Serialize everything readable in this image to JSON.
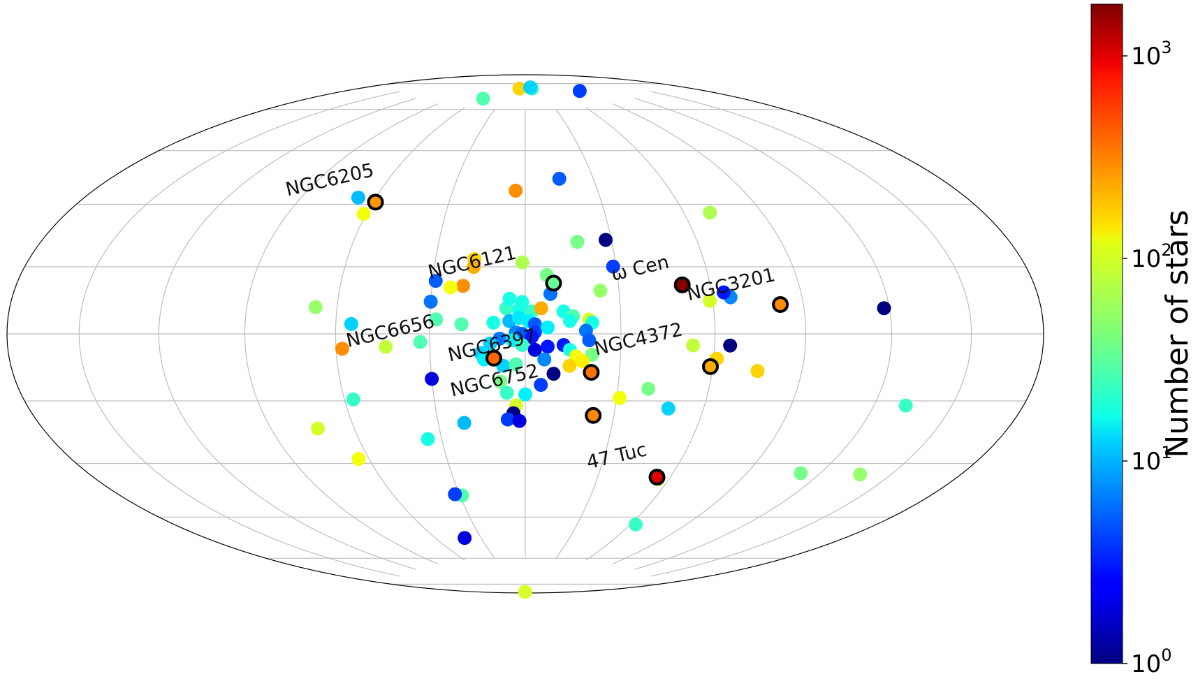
{
  "chart_data": {
    "type": "scatter",
    "projection": "hammer-aitoff (galactic coordinates, all-sky)",
    "grid": true,
    "colormap": "jet",
    "color_scale": "log",
    "colorbar": {
      "label": "Number of stars",
      "range": [
        1,
        1800
      ],
      "ticks": [
        {
          "value": 1,
          "base": "10",
          "exp": "0"
        },
        {
          "value": 10,
          "base": "10",
          "exp": "1"
        },
        {
          "value": 100,
          "base": "10",
          "exp": "2"
        },
        {
          "value": 1000,
          "base": "10",
          "exp": "3"
        }
      ]
    },
    "highlighted": [
      {
        "name": "NGC6205",
        "l": 59.0,
        "b": 40.9,
        "n": 230
      },
      {
        "name": "NGC6121",
        "l": -9.1,
        "b": 15.9,
        "n": 35
      },
      {
        "name": "ω Cen",
        "l": -50.8,
        "b": 15.0,
        "n": 1700
      },
      {
        "name": "NGC3201",
        "l": -82.2,
        "b": 8.6,
        "n": 250
      },
      {
        "name": "NGC6656",
        "l": 9.9,
        "b": -7.6,
        "n": 330
      },
      {
        "name": "NGC6397",
        "l": -21.0,
        "b": -12.0,
        "n": 300
      },
      {
        "name": "NGC4372",
        "l": -59.2,
        "b": -9.9,
        "n": 200
      },
      {
        "name": "NGC6752",
        "l": -23.0,
        "b": -25.6,
        "n": 260
      },
      {
        "name": "47 Tuc",
        "l": -54.5,
        "b": -44.9,
        "n": 900
      }
    ],
    "labels": [
      {
        "text": "NGC6205",
        "l": 82.0,
        "b": 45.0
      },
      {
        "text": "NGC6121",
        "l": 17.0,
        "b": 20.5
      },
      {
        "text": "ω Cen",
        "l": -38.0,
        "b": 18.5
      },
      {
        "text": "NGC3201",
        "l": -67.0,
        "b": 13.0
      },
      {
        "text": "NGC6656",
        "l": 42.0,
        "b": -1.0
      },
      {
        "text": "NGC6397",
        "l": 10.0,
        "b": -5.5
      },
      {
        "text": "NGC4372",
        "l": -36.0,
        "b": -3.5
      },
      {
        "text": "NGC6752",
        "l": 9.5,
        "b": -16.5
      },
      {
        "text": "47 Tuc",
        "l": -36.0,
        "b": -40.5
      }
    ],
    "points": [
      {
        "l": 13.0,
        "b": 84.0,
        "n": 150
      },
      {
        "l": -15.0,
        "b": 84.0,
        "n": 25
      },
      {
        "l": -90.0,
        "b": 81.0,
        "n": 4
      },
      {
        "l": 55.0,
        "b": 79.0,
        "n": 30
      },
      {
        "l": -12.0,
        "b": 84.5,
        "n": 12
      },
      {
        "l": -15.0,
        "b": 50.0,
        "n": 5
      },
      {
        "l": 4.0,
        "b": 46.0,
        "n": 250
      },
      {
        "l": 67.0,
        "b": 42.0,
        "n": 10
      },
      {
        "l": 61.0,
        "b": 37.0,
        "n": 100
      },
      {
        "l": -70.0,
        "b": 37.0,
        "n": 60
      },
      {
        "l": -18.0,
        "b": 29.0,
        "n": 40
      },
      {
        "l": -28.0,
        "b": 29.5,
        "n": 1
      },
      {
        "l": -29.0,
        "b": 21.0,
        "n": 4
      },
      {
        "l": 17.0,
        "b": 23.5,
        "n": 150
      },
      {
        "l": 17.0,
        "b": 21.0,
        "n": 200
      },
      {
        "l": 1.0,
        "b": 22.5,
        "n": 60
      },
      {
        "l": -7.0,
        "b": 18.5,
        "n": 40
      },
      {
        "l": 29.0,
        "b": 16.5,
        "n": 5
      },
      {
        "l": 20.0,
        "b": 15.0,
        "n": 250
      },
      {
        "l": 24.0,
        "b": 14.5,
        "n": 100
      },
      {
        "l": -24.0,
        "b": 13.5,
        "n": 50
      },
      {
        "l": 30.0,
        "b": 10.0,
        "n": 6
      },
      {
        "l": -8.0,
        "b": 12.5,
        "n": 6
      },
      {
        "l": -66.0,
        "b": 11.0,
        "n": 7
      },
      {
        "l": -59.0,
        "b": 10.0,
        "n": 80
      },
      {
        "l": -64.0,
        "b": 12.5,
        "n": 3
      },
      {
        "l": -118.0,
        "b": 7.0,
        "n": 1
      },
      {
        "l": 67.0,
        "b": 8.0,
        "n": 50
      },
      {
        "l": 55.0,
        "b": 3.0,
        "n": 12
      },
      {
        "l": 6.0,
        "b": 8.0,
        "n": 25
      },
      {
        "l": 2.0,
        "b": 7.5,
        "n": 20
      },
      {
        "l": -2.0,
        "b": 7.0,
        "n": 25
      },
      {
        "l": -5.0,
        "b": 8.0,
        "n": 200
      },
      {
        "l": 5.0,
        "b": 11.0,
        "n": 20
      },
      {
        "l": 1.0,
        "b": 10.0,
        "n": 20
      },
      {
        "l": -12.0,
        "b": 7.0,
        "n": 20
      },
      {
        "l": -15.0,
        "b": 5.5,
        "n": 30
      },
      {
        "l": -14.0,
        "b": 4.0,
        "n": 20
      },
      {
        "l": 28.0,
        "b": 4.5,
        "n": 30
      },
      {
        "l": 20.0,
        "b": 3.0,
        "n": 30
      },
      {
        "l": 10.0,
        "b": 3.5,
        "n": 20
      },
      {
        "l": 5.0,
        "b": 4.0,
        "n": 10
      },
      {
        "l": 2.0,
        "b": 5.0,
        "n": 14
      },
      {
        "l": -1.0,
        "b": 4.0,
        "n": 15
      },
      {
        "l": -3.0,
        "b": 3.0,
        "n": 5
      },
      {
        "l": -7.0,
        "b": 2.0,
        "n": 15
      },
      {
        "l": -20.0,
        "b": 4.5,
        "n": 80
      },
      {
        "l": -21.0,
        "b": 3.5,
        "n": 20
      },
      {
        "l": -19.0,
        "b": 1.0,
        "n": 6
      },
      {
        "l": 3.0,
        "b": 0.5,
        "n": 7
      },
      {
        "l": 1.0,
        "b": 0.0,
        "n": 5
      },
      {
        "l": -3.0,
        "b": 0.5,
        "n": 4
      },
      {
        "l": -2.0,
        "b": -1.0,
        "n": 3
      },
      {
        "l": 8.0,
        "b": -1.5,
        "n": 6
      },
      {
        "l": 11.0,
        "b": -3.0,
        "n": 12
      },
      {
        "l": 4.0,
        "b": -2.0,
        "n": 15
      },
      {
        "l": 1.0,
        "b": -3.5,
        "n": 25
      },
      {
        "l": -3.0,
        "b": -5.0,
        "n": 2
      },
      {
        "l": -7.0,
        "b": -4.0,
        "n": 3
      },
      {
        "l": -12.0,
        "b": -3.5,
        "n": 3
      },
      {
        "l": -14.0,
        "b": -5.0,
        "n": 20
      },
      {
        "l": -20.0,
        "b": -2.0,
        "n": 5
      },
      {
        "l": -16.0,
        "b": -7.0,
        "n": 100
      },
      {
        "l": -21.0,
        "b": -6.5,
        "n": 40
      },
      {
        "l": -18.0,
        "b": -8.5,
        "n": 120
      },
      {
        "l": -14.0,
        "b": -10.0,
        "n": 150
      },
      {
        "l": -9.0,
        "b": -12.5,
        "n": 1
      },
      {
        "l": 14.0,
        "b": -6.0,
        "n": 12
      },
      {
        "l": 13.0,
        "b": -8.0,
        "n": 15
      },
      {
        "l": 7.0,
        "b": -10.0,
        "n": 12
      },
      {
        "l": 3.0,
        "b": -9.5,
        "n": 30
      },
      {
        "l": -6.0,
        "b": -8.0,
        "n": 7
      },
      {
        "l": 33.0,
        "b": -2.5,
        "n": 30
      },
      {
        "l": 44.0,
        "b": -4.0,
        "n": 70
      },
      {
        "l": 58.0,
        "b": -4.5,
        "n": 250
      },
      {
        "l": -53.0,
        "b": -3.5,
        "n": 70
      },
      {
        "l": -61.0,
        "b": -7.5,
        "n": 150
      },
      {
        "l": -65.0,
        "b": -3.5,
        "n": 1
      },
      {
        "l": -75.0,
        "b": -11.0,
        "n": 150
      },
      {
        "l": 30.0,
        "b": -14.0,
        "n": 2
      },
      {
        "l": 8.0,
        "b": -15.0,
        "n": 40
      },
      {
        "l": 6.0,
        "b": -18.5,
        "n": 25
      },
      {
        "l": 0.0,
        "b": -19.0,
        "n": 15
      },
      {
        "l": -5.0,
        "b": -16.0,
        "n": 4
      },
      {
        "l": 3.0,
        "b": -22.5,
        "n": 80
      },
      {
        "l": 4.0,
        "b": -25.0,
        "n": 1
      },
      {
        "l": 6.0,
        "b": -27.0,
        "n": 4
      },
      {
        "l": 2.0,
        "b": -27.5,
        "n": 2
      },
      {
        "l": 21.0,
        "b": -28.0,
        "n": 10
      },
      {
        "l": -40.0,
        "b": -17.0,
        "n": 40
      },
      {
        "l": -31.0,
        "b": -20.0,
        "n": 100
      },
      {
        "l": -48.0,
        "b": -23.0,
        "n": 12
      },
      {
        "l": 57.0,
        "b": -20.0,
        "n": 25
      },
      {
        "l": 73.0,
        "b": -28.5,
        "n": 80
      },
      {
        "l": 35.0,
        "b": -33.0,
        "n": 20
      },
      {
        "l": 64.0,
        "b": -38.5,
        "n": 100
      },
      {
        "l": -132.0,
        "b": -19.0,
        "n": 25
      },
      {
        "l": -137.0,
        "b": -38.0,
        "n": 50
      },
      {
        "l": -112.0,
        "b": -40.0,
        "n": 40
      },
      {
        "l": 29.0,
        "b": -52.0,
        "n": 30
      },
      {
        "l": 32.0,
        "b": -51.5,
        "n": 4
      },
      {
        "l": -55.5,
        "b": -45.5,
        "n": 80
      },
      {
        "l": -63.0,
        "b": -61.0,
        "n": 25
      },
      {
        "l": 41.0,
        "b": -67.0,
        "n": 2
      },
      {
        "l": 5.0,
        "b": -89.5,
        "n": 80
      }
    ]
  }
}
